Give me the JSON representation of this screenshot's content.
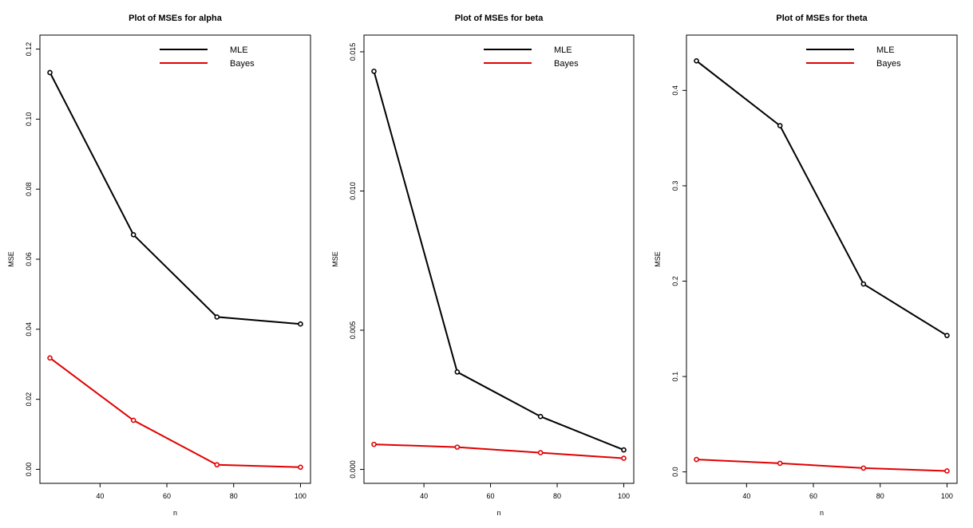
{
  "chart_data": [
    {
      "type": "line",
      "title": "Plot of MSEs for alpha",
      "xlabel": "n",
      "ylabel": "MSE",
      "x": [
        25,
        50,
        75,
        100
      ],
      "xlim": [
        22,
        103
      ],
      "ylim": [
        -0.004,
        0.124
      ],
      "xticks": [
        "40",
        "60",
        "80",
        "100"
      ],
      "xtick_values": [
        40,
        60,
        80,
        100
      ],
      "yticks": [
        "0.00",
        "0.02",
        "0.04",
        "0.06",
        "0.08",
        "0.10",
        "0.12"
      ],
      "ytick_values": [
        0,
        0.02,
        0.04,
        0.06,
        0.08,
        0.1,
        0.12
      ],
      "legend_position": "top-right",
      "grid": false,
      "series": [
        {
          "name": "MLE",
          "color": "#000000",
          "values": [
            0.1133,
            0.067,
            0.0435,
            0.0415
          ]
        },
        {
          "name": "Bayes",
          "color": "#e00000",
          "values": [
            0.0318,
            0.014,
            0.0013,
            0.0006
          ]
        }
      ]
    },
    {
      "type": "line",
      "title": "Plot of MSEs for beta",
      "xlabel": "n",
      "ylabel": "MSE",
      "x": [
        25,
        50,
        75,
        100
      ],
      "xlim": [
        22,
        103
      ],
      "ylim": [
        -0.0005,
        0.0156
      ],
      "xticks": [
        "40",
        "60",
        "80",
        "100"
      ],
      "xtick_values": [
        40,
        60,
        80,
        100
      ],
      "yticks": [
        "0.000",
        "0.005",
        "0.010",
        "0.015"
      ],
      "ytick_values": [
        0,
        0.005,
        0.01,
        0.015
      ],
      "legend_position": "top-right",
      "grid": false,
      "series": [
        {
          "name": "MLE",
          "color": "#000000",
          "values": [
            0.0143,
            0.0035,
            0.0019,
            0.0007
          ]
        },
        {
          "name": "Bayes",
          "color": "#e00000",
          "values": [
            0.0009,
            0.0008,
            0.0006,
            0.0004
          ]
        }
      ]
    },
    {
      "type": "line",
      "title": "Plot of MSEs for theta",
      "xlabel": "n",
      "ylabel": "MSE",
      "x": [
        25,
        50,
        75,
        100
      ],
      "xlim": [
        22,
        103
      ],
      "ylim": [
        -0.012,
        0.458
      ],
      "xticks": [
        "40",
        "60",
        "80",
        "100"
      ],
      "xtick_values": [
        40,
        60,
        80,
        100
      ],
      "yticks": [
        "0.0",
        "0.1",
        "0.2",
        "0.3",
        "0.4"
      ],
      "ytick_values": [
        0,
        0.1,
        0.2,
        0.3,
        0.4
      ],
      "legend_position": "top-right",
      "grid": false,
      "series": [
        {
          "name": "MLE",
          "color": "#000000",
          "values": [
            0.431,
            0.363,
            0.197,
            0.143
          ]
        },
        {
          "name": "Bayes",
          "color": "#e00000",
          "values": [
            0.013,
            0.009,
            0.004,
            0.001
          ]
        }
      ]
    }
  ]
}
